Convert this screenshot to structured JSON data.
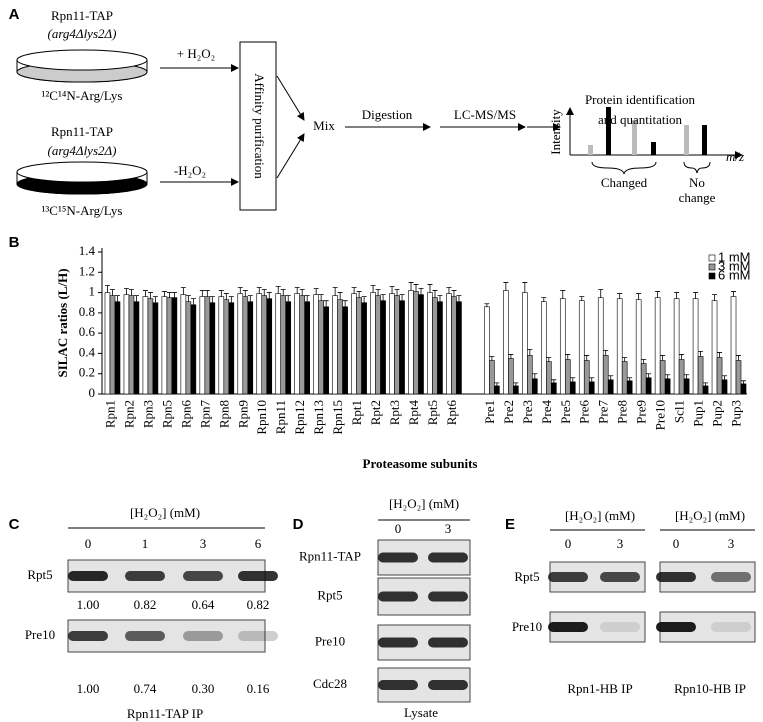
{
  "panel_a": {
    "label": "A",
    "top_strain": "Rpn11-TAP",
    "top_genotype": "(arg4Δlys2Δ)",
    "top_label": "¹²C¹⁴N-Arg/Lys",
    "bottom_strain": "Rpn11-TAP",
    "bottom_genotype": "(arg4Δlys2Δ)",
    "bottom_label": "¹³C¹⁵N-Arg/Lys",
    "plus_h2o2": "+ H₂O₂",
    "minus_h2o2": "-H₂O₂",
    "affinity": "Affinity purification",
    "mix": "Mix",
    "digestion": "Digestion",
    "lcms": "LC-MS/MS",
    "protein_id": [
      "Protein identification",
      "and quantitation"
    ],
    "intensity": "Intensity",
    "mz": "m/z",
    "changed": "Changed",
    "no_change": [
      "No",
      "change"
    ]
  },
  "chart_data": {
    "type": "bar",
    "panel_label": "B",
    "ylabel": "SILAC ratios (L/H)",
    "xlabel": "Proteasome subunits",
    "categories": [
      "Rpn1",
      "Rpn2",
      "Rpn3",
      "Rpn5",
      "Rpn6",
      "Rpn7",
      "Rpn8",
      "Rpn9",
      "Rpn10",
      "Rpn11",
      "Rpn12",
      "Rpn13",
      "Rpn15",
      "Rpt1",
      "Rpt2",
      "Rpt3",
      "Rpt4",
      "Rpt5",
      "Rpt6",
      null,
      "Pre1",
      "Pre2",
      "Pre3",
      "Pre4",
      "Pre5",
      "Pre6",
      "Pre7",
      "Pre8",
      "Pre9",
      "Pre10",
      "Scl1",
      "Pup1",
      "Pup2",
      "Pup3"
    ],
    "series": [
      {
        "name": "1 mM",
        "color": "#ffffff",
        "values": [
          1.0,
          0.98,
          0.96,
          0.96,
          0.98,
          0.96,
          0.96,
          0.99,
          0.99,
          0.99,
          0.99,
          0.98,
          0.97,
          0.99,
          1.0,
          0.99,
          1.02,
          1.0,
          0.99,
          null,
          0.86,
          1.02,
          1.0,
          0.91,
          0.94,
          0.92,
          0.95,
          0.94,
          0.93,
          0.95,
          0.94,
          0.94,
          0.92,
          0.96
        ],
        "errors": [
          0.07,
          0.06,
          0.06,
          0.05,
          0.07,
          0.06,
          0.06,
          0.06,
          0.06,
          0.07,
          0.06,
          0.06,
          0.08,
          0.06,
          0.07,
          0.07,
          0.08,
          0.08,
          0.06,
          null,
          0.03,
          0.08,
          0.1,
          0.04,
          0.08,
          0.04,
          0.08,
          0.05,
          0.06,
          0.06,
          0.06,
          0.06,
          0.06,
          0.05
        ]
      },
      {
        "name": "3 mM",
        "color": "#999999",
        "values": [
          0.97,
          0.97,
          0.94,
          0.95,
          0.91,
          0.96,
          0.93,
          0.96,
          0.97,
          0.97,
          0.97,
          0.92,
          0.93,
          0.95,
          0.97,
          0.97,
          1.01,
          0.95,
          0.96,
          null,
          0.33,
          0.35,
          0.38,
          0.32,
          0.34,
          0.33,
          0.38,
          0.32,
          0.3,
          0.33,
          0.34,
          0.37,
          0.36,
          0.33
        ],
        "errors": [
          0.06,
          0.06,
          0.06,
          0.05,
          0.06,
          0.06,
          0.06,
          0.06,
          0.06,
          0.06,
          0.06,
          0.06,
          0.07,
          0.06,
          0.06,
          0.06,
          0.07,
          0.07,
          0.06,
          null,
          0.04,
          0.04,
          0.06,
          0.04,
          0.05,
          0.05,
          0.05,
          0.04,
          0.04,
          0.05,
          0.05,
          0.05,
          0.05,
          0.05
        ]
      },
      {
        "name": "6 mM",
        "color": "#000000",
        "values": [
          0.91,
          0.91,
          0.9,
          0.95,
          0.88,
          0.9,
          0.9,
          0.91,
          0.94,
          0.91,
          0.91,
          0.86,
          0.86,
          0.9,
          0.92,
          0.92,
          0.98,
          0.91,
          0.91,
          null,
          0.08,
          0.08,
          0.15,
          0.11,
          0.12,
          0.12,
          0.14,
          0.13,
          0.16,
          0.15,
          0.15,
          0.08,
          0.14,
          0.1
        ],
        "errors": [
          0.06,
          0.06,
          0.06,
          0.05,
          0.06,
          0.06,
          0.06,
          0.06,
          0.06,
          0.06,
          0.06,
          0.06,
          0.06,
          0.06,
          0.06,
          0.06,
          0.06,
          0.06,
          0.06,
          null,
          0.03,
          0.03,
          0.05,
          0.03,
          0.04,
          0.04,
          0.04,
          0.03,
          0.04,
          0.04,
          0.04,
          0.03,
          0.04,
          0.03
        ]
      }
    ],
    "ylim": [
      0,
      1.4
    ],
    "yticks": [
      0,
      0.2,
      0.4,
      0.6,
      0.8,
      1,
      1.2,
      1.4
    ],
    "grid": false,
    "legend": "top-right"
  },
  "panel_c": {
    "label": "C",
    "header": "[H₂O₂] (mM)",
    "lanes": [
      "0",
      "1",
      "3",
      "6"
    ],
    "rows": [
      {
        "name": "Rpt5",
        "quant": [
          "1.00",
          "0.82",
          "0.64",
          "0.82"
        ]
      },
      {
        "name": "Pre10",
        "quant": [
          "1.00",
          "0.74",
          "0.30",
          "0.16"
        ]
      }
    ],
    "caption": "Rpn11-TAP IP"
  },
  "panel_d": {
    "label": "D",
    "header": "[H₂O₂] (mM)",
    "lanes": [
      "0",
      "3"
    ],
    "rows": [
      "Rpn11-TAP",
      "Rpt5",
      "Pre10",
      "Cdc28"
    ],
    "caption": "Lysate"
  },
  "panel_e": {
    "label": "E",
    "rows": [
      "Rpt5",
      "Pre10"
    ],
    "blocks": [
      {
        "header": "[H₂O₂] (mM)",
        "lanes": [
          "0",
          "3"
        ],
        "caption": "Rpn1-HB IP"
      },
      {
        "header": "[H₂O₂] (mM)",
        "lanes": [
          "0",
          "3"
        ],
        "caption": "Rpn10-HB IP"
      }
    ]
  }
}
